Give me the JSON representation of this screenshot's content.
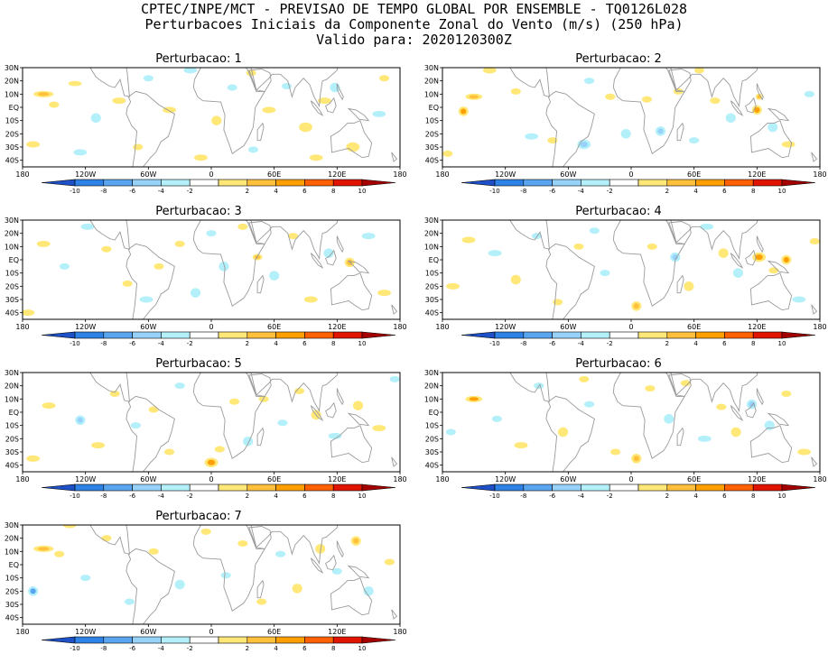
{
  "header": {
    "line1": "CPTEC/INPE/MCT - PREVISAO DE TEMPO GLOBAL POR ENSEMBLE - TQ0126L028",
    "line2": "Perturbacoes Iniciais da Componente Zonal do Vento (m/s) (250 hPa)",
    "line3": "Valido para: 2020120300Z"
  },
  "panels": [
    {
      "title": "Perturbacao: 1"
    },
    {
      "title": "Perturbacao: 2"
    },
    {
      "title": "Perturbacao: 3"
    },
    {
      "title": "Perturbacao: 4"
    },
    {
      "title": "Perturbacao: 5"
    },
    {
      "title": "Perturbacao: 6"
    },
    {
      "title": "Perturbacao: 7"
    }
  ],
  "lat_labels": [
    "30N",
    "20N",
    "10N",
    "EQ",
    "10S",
    "20S",
    "30S",
    "40S"
  ],
  "lon_labels": [
    "180",
    "120W",
    "60W",
    "0",
    "60E",
    "120E",
    "180"
  ],
  "colorbar": {
    "labels": [
      "-10",
      "-8",
      "-6",
      "-4",
      "-2",
      "2",
      "4",
      "6",
      "8",
      "10"
    ],
    "colors": [
      "#1e50c8",
      "#2e82e6",
      "#5aa5f0",
      "#96d2fa",
      "#b4f0fa",
      "#ffffff",
      "#ffe878",
      "#ffc03c",
      "#ffa000",
      "#ff6000",
      "#e11400",
      "#a50000"
    ]
  }
}
